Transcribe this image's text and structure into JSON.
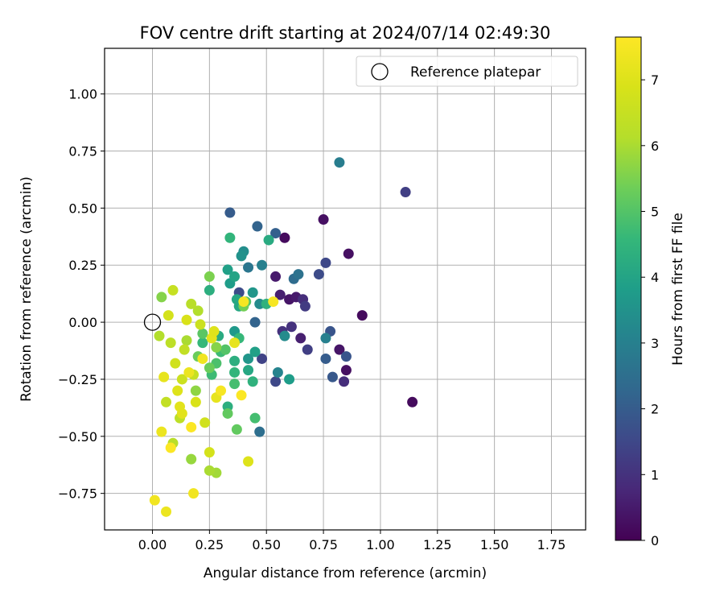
{
  "chart_data": {
    "type": "scatter",
    "title": "FOV centre drift starting at 2024/07/14 02:49:30",
    "xlabel": "Angular distance from reference (arcmin)",
    "ylabel": "Rotation from reference (arcmin)",
    "colorbar_label": "Hours from first FF file",
    "xlim": [
      -0.21,
      1.9
    ],
    "ylim": [
      -0.91,
      1.2
    ],
    "xticks": [
      0.0,
      0.25,
      0.5,
      0.75,
      1.0,
      1.25,
      1.5,
      1.75
    ],
    "xtick_labels": [
      "0.00",
      "0.25",
      "0.50",
      "0.75",
      "1.00",
      "1.25",
      "1.50",
      "1.75"
    ],
    "yticks": [
      -0.75,
      -0.5,
      -0.25,
      0.0,
      0.25,
      0.5,
      0.75,
      1.0
    ],
    "ytick_labels": [
      "−0.75",
      "−0.50",
      "−0.25",
      "0.00",
      "0.25",
      "0.50",
      "0.75",
      "1.00"
    ],
    "colorbar_range": [
      0,
      7.65
    ],
    "colorbar_ticks": [
      0,
      1,
      2,
      3,
      4,
      5,
      6,
      7
    ],
    "colorbar_tick_labels": [
      "0",
      "1",
      "2",
      "3",
      "4",
      "5",
      "6",
      "7"
    ],
    "colormap": "viridis",
    "grid": true,
    "legend": {
      "position": "top-right",
      "entries": [
        "Reference platepar"
      ]
    },
    "reference_point": {
      "x": 0.0,
      "y": 0.0,
      "label": "Reference platepar"
    },
    "points": [
      {
        "x": 0.58,
        "y": 0.37,
        "h": 0.2
      },
      {
        "x": 0.75,
        "y": 0.45,
        "h": 0.3
      },
      {
        "x": 0.86,
        "y": 0.3,
        "h": 0.3
      },
      {
        "x": 0.92,
        "y": 0.03,
        "h": 0.2
      },
      {
        "x": 1.14,
        "y": -0.35,
        "h": 0.2
      },
      {
        "x": 0.85,
        "y": -0.21,
        "h": 0.3
      },
      {
        "x": 0.82,
        "y": -0.12,
        "h": 0.4
      },
      {
        "x": 0.6,
        "y": 0.1,
        "h": 0.4
      },
      {
        "x": 0.63,
        "y": 0.11,
        "h": 0.5
      },
      {
        "x": 0.54,
        "y": 0.2,
        "h": 0.5
      },
      {
        "x": 0.56,
        "y": 0.12,
        "h": 0.6
      },
      {
        "x": 0.65,
        "y": -0.07,
        "h": 0.6
      },
      {
        "x": 0.84,
        "y": -0.26,
        "h": 0.9
      },
      {
        "x": 0.66,
        "y": 0.1,
        "h": 0.9
      },
      {
        "x": 0.61,
        "y": -0.02,
        "h": 1.0
      },
      {
        "x": 0.57,
        "y": -0.04,
        "h": 1.0
      },
      {
        "x": 1.11,
        "y": 0.57,
        "h": 1.3
      },
      {
        "x": 0.67,
        "y": 0.07,
        "h": 1.2
      },
      {
        "x": 0.68,
        "y": -0.12,
        "h": 1.3
      },
      {
        "x": 0.48,
        "y": -0.16,
        "h": 1.4
      },
      {
        "x": 0.54,
        "y": -0.26,
        "h": 1.5
      },
      {
        "x": 0.76,
        "y": 0.26,
        "h": 1.5
      },
      {
        "x": 0.73,
        "y": 0.21,
        "h": 1.6
      },
      {
        "x": 0.38,
        "y": 0.13,
        "h": 1.6
      },
      {
        "x": 0.78,
        "y": -0.04,
        "h": 1.8
      },
      {
        "x": 0.85,
        "y": -0.15,
        "h": 1.8
      },
      {
        "x": 0.79,
        "y": -0.24,
        "h": 1.9
      },
      {
        "x": 0.76,
        "y": -0.16,
        "h": 2.0
      },
      {
        "x": 0.34,
        "y": 0.48,
        "h": 2.0
      },
      {
        "x": 0.54,
        "y": 0.39,
        "h": 2.1
      },
      {
        "x": 0.46,
        "y": 0.42,
        "h": 2.2
      },
      {
        "x": 0.45,
        "y": 0.0,
        "h": 2.2
      },
      {
        "x": 0.62,
        "y": 0.19,
        "h": 2.4
      },
      {
        "x": 0.47,
        "y": -0.48,
        "h": 2.5
      },
      {
        "x": 0.64,
        "y": 0.21,
        "h": 2.6
      },
      {
        "x": 0.42,
        "y": 0.24,
        "h": 2.7
      },
      {
        "x": 0.82,
        "y": 0.7,
        "h": 2.9
      },
      {
        "x": 0.76,
        "y": -0.07,
        "h": 3.0
      },
      {
        "x": 0.48,
        "y": 0.25,
        "h": 3.0
      },
      {
        "x": 0.55,
        "y": -0.22,
        "h": 3.1
      },
      {
        "x": 0.47,
        "y": 0.08,
        "h": 3.3
      },
      {
        "x": 0.58,
        "y": -0.06,
        "h": 3.3
      },
      {
        "x": 0.4,
        "y": 0.31,
        "h": 3.4
      },
      {
        "x": 0.39,
        "y": 0.29,
        "h": 3.5
      },
      {
        "x": 0.44,
        "y": 0.13,
        "h": 3.6
      },
      {
        "x": 0.42,
        "y": -0.16,
        "h": 3.6
      },
      {
        "x": 0.36,
        "y": -0.04,
        "h": 3.7
      },
      {
        "x": 0.34,
        "y": 0.17,
        "h": 3.8
      },
      {
        "x": 0.6,
        "y": -0.25,
        "h": 3.8
      },
      {
        "x": 0.33,
        "y": 0.23,
        "h": 3.9
      },
      {
        "x": 0.45,
        "y": -0.13,
        "h": 3.9
      },
      {
        "x": 0.36,
        "y": 0.2,
        "h": 4.0
      },
      {
        "x": 0.37,
        "y": 0.1,
        "h": 4.1
      },
      {
        "x": 0.42,
        "y": -0.21,
        "h": 4.1
      },
      {
        "x": 0.38,
        "y": 0.07,
        "h": 4.1
      },
      {
        "x": 0.29,
        "y": -0.06,
        "h": 4.2
      },
      {
        "x": 0.51,
        "y": 0.36,
        "h": 4.2
      },
      {
        "x": 0.33,
        "y": -0.37,
        "h": 4.3
      },
      {
        "x": 0.36,
        "y": -0.17,
        "h": 4.3
      },
      {
        "x": 0.25,
        "y": 0.14,
        "h": 4.3
      },
      {
        "x": 0.5,
        "y": 0.08,
        "h": 4.4
      },
      {
        "x": 0.44,
        "y": -0.26,
        "h": 4.4
      },
      {
        "x": 0.36,
        "y": -0.22,
        "h": 4.5
      },
      {
        "x": 0.34,
        "y": 0.37,
        "h": 4.5
      },
      {
        "x": 0.38,
        "y": -0.07,
        "h": 4.6
      },
      {
        "x": 0.22,
        "y": -0.09,
        "h": 4.6
      },
      {
        "x": 0.3,
        "y": -0.13,
        "h": 4.7
      },
      {
        "x": 0.26,
        "y": -0.23,
        "h": 4.7
      },
      {
        "x": 0.36,
        "y": -0.27,
        "h": 4.8
      },
      {
        "x": 0.45,
        "y": -0.42,
        "h": 4.8
      },
      {
        "x": 0.28,
        "y": -0.18,
        "h": 4.9
      },
      {
        "x": 0.41,
        "y": 0.09,
        "h": 5.0
      },
      {
        "x": 0.32,
        "y": -0.12,
        "h": 5.0
      },
      {
        "x": 0.22,
        "y": -0.05,
        "h": 5.1
      },
      {
        "x": 0.37,
        "y": -0.47,
        "h": 5.2
      },
      {
        "x": 0.33,
        "y": -0.4,
        "h": 5.2
      },
      {
        "x": 0.25,
        "y": -0.2,
        "h": 5.3
      },
      {
        "x": 0.2,
        "y": -0.15,
        "h": 5.3
      },
      {
        "x": 0.4,
        "y": 0.07,
        "h": 5.4
      },
      {
        "x": 0.25,
        "y": 0.2,
        "h": 5.5
      },
      {
        "x": 0.04,
        "y": 0.11,
        "h": 5.6
      },
      {
        "x": 0.28,
        "y": -0.11,
        "h": 5.6
      },
      {
        "x": 0.19,
        "y": -0.3,
        "h": 5.7
      },
      {
        "x": 0.17,
        "y": -0.6,
        "h": 5.8
      },
      {
        "x": 0.28,
        "y": -0.66,
        "h": 5.9
      },
      {
        "x": 0.25,
        "y": -0.65,
        "h": 6.0
      },
      {
        "x": 0.15,
        "y": -0.08,
        "h": 6.0
      },
      {
        "x": 0.03,
        "y": -0.06,
        "h": 6.1
      },
      {
        "x": 0.2,
        "y": 0.05,
        "h": 6.1
      },
      {
        "x": 0.17,
        "y": 0.08,
        "h": 6.2
      },
      {
        "x": 0.09,
        "y": -0.53,
        "h": 6.2
      },
      {
        "x": 0.08,
        "y": -0.09,
        "h": 6.3
      },
      {
        "x": 0.12,
        "y": -0.42,
        "h": 6.3
      },
      {
        "x": 0.06,
        "y": -0.35,
        "h": 6.4
      },
      {
        "x": 0.14,
        "y": -0.12,
        "h": 6.4
      },
      {
        "x": 0.18,
        "y": -0.23,
        "h": 6.5
      },
      {
        "x": 0.09,
        "y": 0.14,
        "h": 6.5
      },
      {
        "x": 0.21,
        "y": -0.01,
        "h": 6.6
      },
      {
        "x": 0.13,
        "y": -0.25,
        "h": 6.6
      },
      {
        "x": 0.1,
        "y": -0.18,
        "h": 6.7
      },
      {
        "x": 0.23,
        "y": -0.44,
        "h": 6.7
      },
      {
        "x": 0.07,
        "y": 0.03,
        "h": 6.8
      },
      {
        "x": 0.25,
        "y": -0.57,
        "h": 6.8
      },
      {
        "x": 0.15,
        "y": 0.01,
        "h": 6.9
      },
      {
        "x": 0.19,
        "y": -0.35,
        "h": 6.9
      },
      {
        "x": 0.11,
        "y": -0.3,
        "h": 7.0
      },
      {
        "x": 0.42,
        "y": -0.61,
        "h": 7.0
      },
      {
        "x": 0.26,
        "y": -0.07,
        "h": 7.1
      },
      {
        "x": 0.13,
        "y": -0.4,
        "h": 7.1
      },
      {
        "x": 0.05,
        "y": -0.24,
        "h": 7.2
      },
      {
        "x": 0.28,
        "y": -0.33,
        "h": 7.2
      },
      {
        "x": 0.16,
        "y": -0.22,
        "h": 7.3
      },
      {
        "x": 0.06,
        "y": -0.83,
        "h": 7.3
      },
      {
        "x": 0.01,
        "y": -0.78,
        "h": 7.4
      },
      {
        "x": 0.18,
        "y": -0.75,
        "h": 7.4
      },
      {
        "x": 0.4,
        "y": 0.09,
        "h": 7.5
      },
      {
        "x": 0.53,
        "y": 0.09,
        "h": 7.5
      },
      {
        "x": 0.3,
        "y": -0.3,
        "h": 7.5
      },
      {
        "x": 0.08,
        "y": -0.55,
        "h": 7.6
      },
      {
        "x": 0.39,
        "y": -0.32,
        "h": 7.6
      },
      {
        "x": 0.17,
        "y": -0.46,
        "h": 7.6
      },
      {
        "x": 0.22,
        "y": -0.16,
        "h": 7.4
      },
      {
        "x": 0.04,
        "y": -0.48,
        "h": 7.3
      },
      {
        "x": 0.36,
        "y": -0.09,
        "h": 7.2
      },
      {
        "x": 0.12,
        "y": -0.37,
        "h": 7.1
      },
      {
        "x": 0.27,
        "y": -0.04,
        "h": 7.0
      }
    ]
  }
}
